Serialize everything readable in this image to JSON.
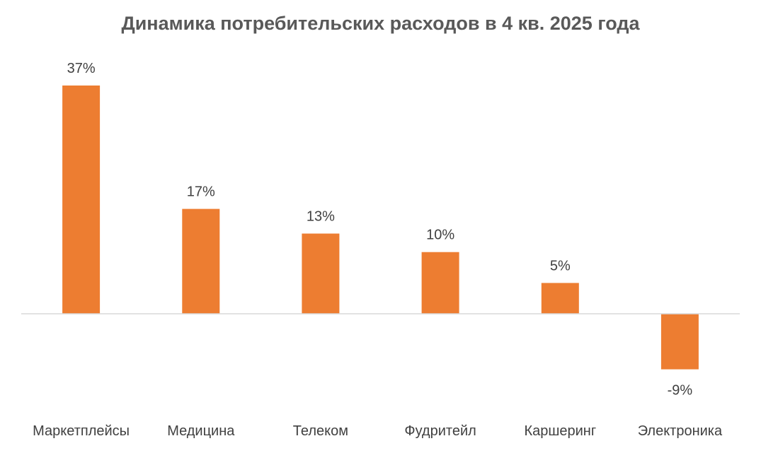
{
  "chart_data": {
    "type": "bar",
    "title": "Динамика потребительских расходов в 4 кв. 2025 года",
    "categories": [
      "Маркетплейсы",
      "Медицина",
      "Телеком",
      "Фудритейл",
      "Каршеринг",
      "Электроника"
    ],
    "values": [
      37,
      17,
      13,
      10,
      5,
      -9
    ],
    "data_labels": [
      "37%",
      "17%",
      "13%",
      "10%",
      "5%",
      "-9%"
    ],
    "unit": "%",
    "bar_color": "#ED7D31",
    "axis_color": "#D9D9D9",
    "grid": false,
    "legend": "none"
  }
}
